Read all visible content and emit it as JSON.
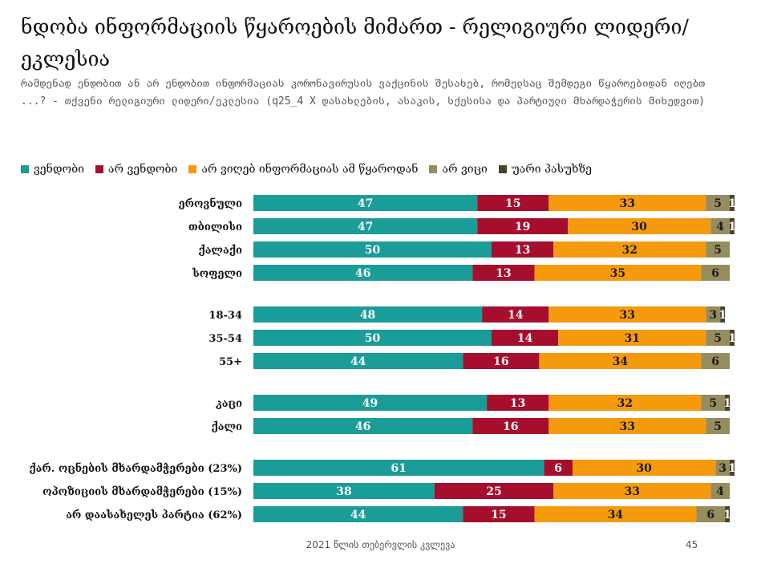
{
  "slide": {
    "title": "ნდობა ინფორმაციის წყაროების მიმართ - რელიგიური ლიდერი/ეკლესია",
    "subtitle": "რამდენად ენდობით ან არ ენდობით ინფორმაციას კორონავირუსის ვაქცინის შესახებ, რომელსაც შემდეგი წყაროებიდან იღებთ ...? - თქვენი რელიგიური ლიდერი/ეკლესია (q25_4 X დასახლების, ასაკის, სქესისა და პარტიული მხარდაჭერის მიხედვით)",
    "footer": "2021 წლის თებერვლის კვლევა",
    "page_number": "45"
  },
  "chart_data": {
    "type": "bar",
    "orientation": "horizontal",
    "stacked": true,
    "normalized": true,
    "legend_position": "top",
    "xlim": [
      0,
      100
    ],
    "categories": [
      "ეროვნული",
      "თბილისი",
      "ქალაქი",
      "სოფელი",
      "18-34",
      "35-54",
      "55+",
      "კაცი",
      "ქალი",
      "ქარ. ოცნების მხარდამჭერები (23%)",
      "ოპოზიციის მხარდამჭერები (15%)",
      "არ დაასახელეს პარტია (62%)"
    ],
    "groups": [
      4,
      3,
      2,
      3
    ],
    "series": [
      {
        "name": "ვენდობი",
        "color": "#1a9c98",
        "values": [
          47,
          47,
          50,
          46,
          48,
          50,
          44,
          49,
          46,
          61,
          38,
          44
        ]
      },
      {
        "name": "არ ვენდობი",
        "color": "#a50f2d",
        "values": [
          15,
          19,
          13,
          13,
          14,
          14,
          16,
          13,
          16,
          6,
          25,
          15
        ]
      },
      {
        "name": "არ ვიღებ ინფორმაციას ამ წყაროდან",
        "color": "#f59a0c",
        "values": [
          33,
          30,
          32,
          35,
          33,
          31,
          34,
          32,
          33,
          30,
          33,
          34
        ]
      },
      {
        "name": "არ ვიცი",
        "color": "#958c5f",
        "values": [
          5,
          4,
          5,
          6,
          3,
          5,
          6,
          5,
          5,
          3,
          4,
          6
        ]
      },
      {
        "name": "უარი პასუხზე",
        "color": "#4a4229",
        "values": [
          1,
          1,
          0,
          0,
          1,
          1,
          0,
          1,
          0,
          1,
          0,
          1
        ]
      }
    ]
  }
}
